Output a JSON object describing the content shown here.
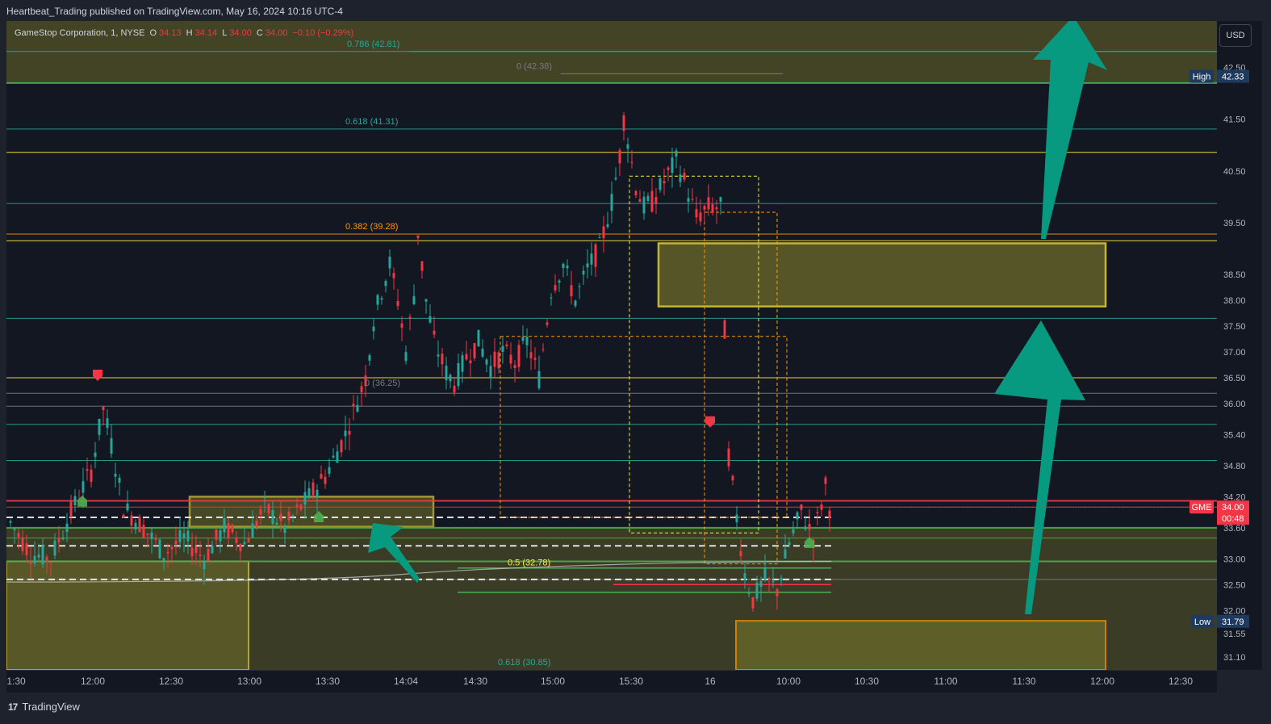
{
  "header": {
    "published_line": "Heartbeat_Trading published on TradingView.com, May 16, 2024 10:16 UTC-4"
  },
  "legend": {
    "symbol_text": "GameStop Corporation, 1, NYSE",
    "o_label": "O",
    "o_value": "34.13",
    "h_label": "H",
    "h_value": "34.14",
    "l_label": "L",
    "l_value": "34.00",
    "c_label": "C",
    "c_value": "34.00",
    "change": "−0.10 (−0.29%)"
  },
  "toolbar": {
    "currency": "USD"
  },
  "footer": {
    "brand": "TradingView",
    "brand_mark": "17"
  },
  "colors": {
    "up": "#26a69a",
    "down": "#f23645",
    "yellow": "#ffeb3b",
    "orange": "#ff9800",
    "teal_arrow": "#089981",
    "green_line": "#4caf50",
    "zone_fill": "#6b6a2a"
  },
  "chart_data": {
    "type": "candlestick",
    "symbol": "GME",
    "timeframe": "1",
    "exchange": "NYSE",
    "ylim": [
      30.85,
      43.4
    ],
    "y_ticks": [
      "42.50",
      "41.50",
      "40.50",
      "39.50",
      "38.50",
      "38.00",
      "37.50",
      "37.00",
      "36.50",
      "36.00",
      "35.40",
      "34.80",
      "34.20",
      "33.60",
      "33.00",
      "32.50",
      "32.00",
      "31.55",
      "31.10"
    ],
    "x_ticks": [
      "1:30",
      "12:00",
      "12:30",
      "13:00",
      "13:30",
      "14:04",
      "14:30",
      "15:00",
      "15:30",
      "16",
      "10:00",
      "10:30",
      "11:00",
      "11:30",
      "12:00",
      "12:30"
    ],
    "price_path": [
      [
        0,
        33.7
      ],
      [
        5,
        33.1
      ],
      [
        10,
        33.0
      ],
      [
        15,
        33.9
      ],
      [
        20,
        34.7
      ],
      [
        23,
        35.9
      ],
      [
        25,
        35.2
      ],
      [
        28,
        34.0
      ],
      [
        33,
        33.6
      ],
      [
        38,
        33.1
      ],
      [
        43,
        33.4
      ],
      [
        48,
        33.0
      ],
      [
        53,
        33.6
      ],
      [
        58,
        33.3
      ],
      [
        63,
        34.0
      ],
      [
        68,
        33.6
      ],
      [
        73,
        34.1
      ],
      [
        78,
        34.6
      ],
      [
        83,
        35.4
      ],
      [
        88,
        36.5
      ],
      [
        90,
        37.6
      ],
      [
        92,
        38.2
      ],
      [
        94,
        38.7
      ],
      [
        96,
        38.0
      ],
      [
        98,
        37.0
      ],
      [
        100,
        38.1
      ],
      [
        101,
        39.3
      ],
      [
        103,
        38.0
      ],
      [
        105,
        37.2
      ],
      [
        108,
        36.6
      ],
      [
        110,
        36.4
      ],
      [
        113,
        36.9
      ],
      [
        116,
        37.2
      ],
      [
        119,
        36.7
      ],
      [
        122,
        37.0
      ],
      [
        125,
        36.8
      ],
      [
        128,
        37.2
      ],
      [
        131,
        36.5
      ],
      [
        134,
        38.2
      ],
      [
        137,
        38.7
      ],
      [
        140,
        38.0
      ],
      [
        143,
        38.6
      ],
      [
        146,
        39.0
      ],
      [
        149,
        39.9
      ],
      [
        151,
        40.8
      ],
      [
        152,
        41.5
      ],
      [
        153,
        41.1
      ],
      [
        155,
        40.2
      ],
      [
        157,
        39.8
      ],
      [
        159,
        39.9
      ],
      [
        162,
        40.3
      ],
      [
        165,
        40.7
      ],
      [
        167,
        40.3
      ],
      [
        170,
        39.6
      ],
      [
        173,
        39.8
      ],
      [
        176,
        39.8
      ],
      [
        178,
        35.0
      ],
      [
        180,
        33.8
      ],
      [
        182,
        32.7
      ],
      [
        184,
        32.2
      ],
      [
        187,
        32.6
      ],
      [
        190,
        32.4
      ],
      [
        193,
        33.3
      ],
      [
        196,
        33.9
      ],
      [
        199,
        33.4
      ],
      [
        202,
        34.4
      ],
      [
        203,
        34.0
      ]
    ],
    "overlays": {
      "fib_labels": [
        {
          "text": "0.786 (42.81)",
          "price": 42.81
        },
        {
          "text": "0 (42.38)",
          "price": 42.38
        },
        {
          "text": "0.618 (41.31)",
          "price": 41.31
        },
        {
          "text": "0.382 (39.28)",
          "price": 39.28
        },
        {
          "text": "0 (36.25)",
          "price": 36.25
        },
        {
          "text": "0.5 (32.78)",
          "price": 32.78
        },
        {
          "text": "0.618 (30.85)",
          "price": 30.85
        }
      ],
      "price_badges": [
        {
          "label": "High",
          "value": "42.33"
        },
        {
          "label": "GME",
          "value": "34.00",
          "sub": "00:48"
        },
        {
          "label": "Low",
          "value": "31.79"
        }
      ]
    }
  }
}
